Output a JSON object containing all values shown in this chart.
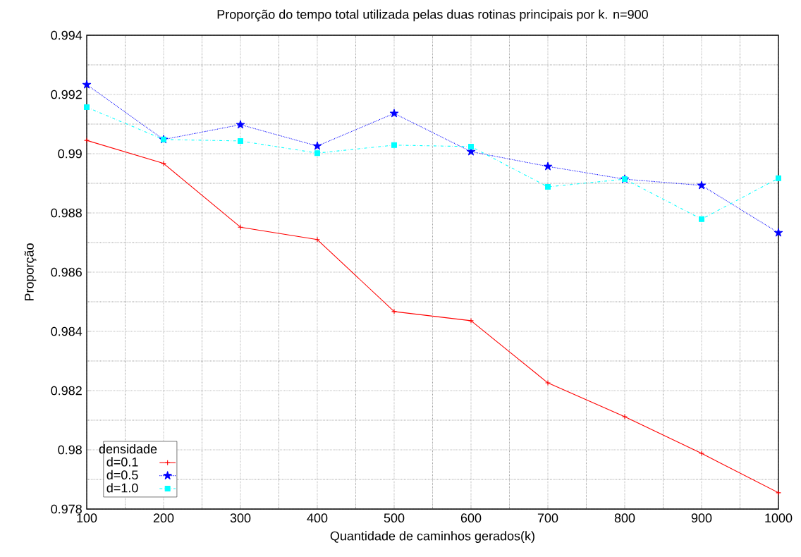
{
  "chart_data": {
    "type": "line",
    "title": "Proporção do tempo total utilizada pelas duas rotinas principais por k. n=900",
    "xlabel": "Quantidade de caminhos gerados(k)",
    "ylabel": "Proporção",
    "legend_title": "densidade",
    "x": [
      100,
      200,
      300,
      400,
      500,
      600,
      700,
      800,
      900,
      1000
    ],
    "series": [
      {
        "name": "d=0.1",
        "color": "#ff0000",
        "marker": "cross",
        "line_style": "solid",
        "values": [
          0.99045,
          0.98967,
          0.98752,
          0.9871,
          0.98467,
          0.98436,
          0.98226,
          0.98112,
          0.97988,
          0.97855
        ]
      },
      {
        "name": "d=0.5",
        "color": "#0000ff",
        "marker": "star",
        "line_style": "dotted",
        "values": [
          0.99233,
          0.99048,
          0.99098,
          0.99026,
          0.99136,
          0.99007,
          0.98957,
          0.98914,
          0.98893,
          0.98733
        ]
      },
      {
        "name": "d=1.0",
        "color": "#00ffff",
        "marker": "square",
        "line_style": "dashed",
        "values": [
          0.99157,
          0.99048,
          0.99043,
          0.99002,
          0.99029,
          0.99024,
          0.98888,
          0.98914,
          0.98779,
          0.98917
        ]
      }
    ],
    "xlim": [
      100,
      1000
    ],
    "ylim": [
      0.978,
      0.994
    ],
    "xticks": [
      100,
      200,
      300,
      400,
      500,
      600,
      700,
      800,
      900,
      1000
    ],
    "yticks": [
      0.978,
      0.98,
      0.982,
      0.984,
      0.986,
      0.988,
      0.99,
      0.992,
      0.994
    ],
    "grid": true,
    "legend": "bottom left"
  }
}
